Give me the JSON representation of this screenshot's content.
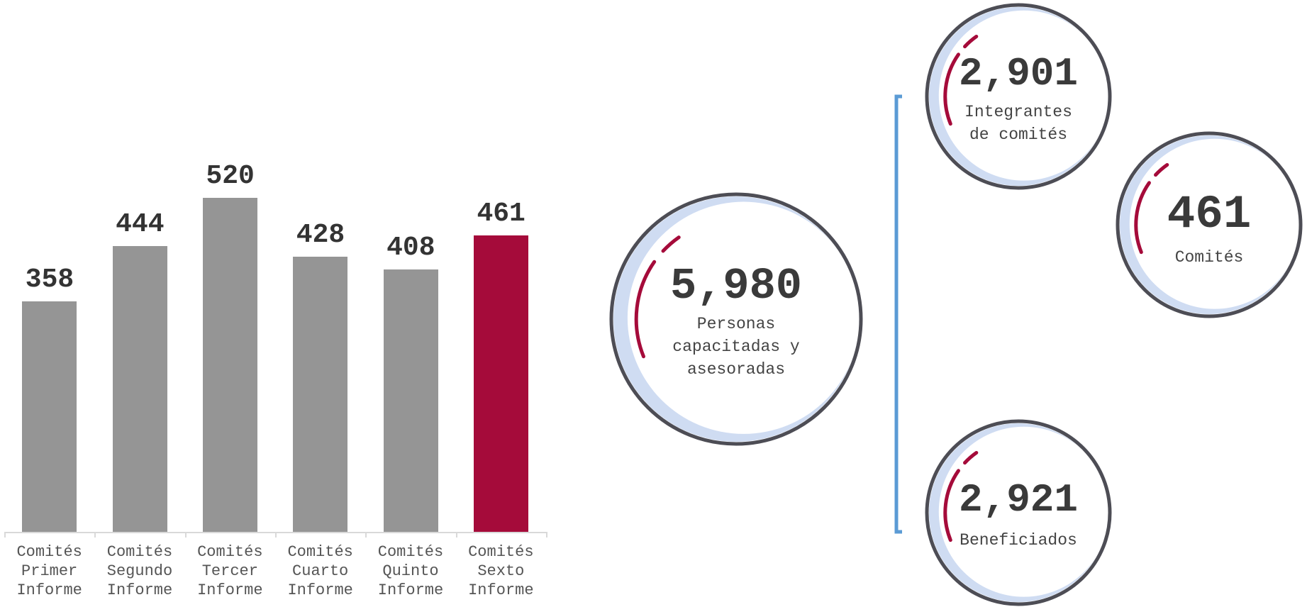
{
  "chart_data": {
    "type": "bar",
    "categories": [
      "Comités Primer Informe",
      "Comités Segundo Informe",
      "Comités Tercer Informe",
      "Comités Cuarto Informe",
      "Comités Quinto Informe",
      "Comités Sexto Informe"
    ],
    "values": [
      358,
      444,
      520,
      428,
      408,
      461
    ],
    "colors": [
      "#959595",
      "#959595",
      "#959595",
      "#959595",
      "#959595",
      "#a50b3a"
    ],
    "ylim": [
      0,
      600
    ]
  },
  "summary": {
    "total": {
      "value": "5,980",
      "label": "Personas capacitadas y asesoradas"
    },
    "items": [
      {
        "value": "2,901",
        "label": "Integrantes de comités"
      },
      {
        "value": "461",
        "label": "Comités"
      },
      {
        "value": "2,921",
        "label": "Beneficiados"
      }
    ]
  }
}
